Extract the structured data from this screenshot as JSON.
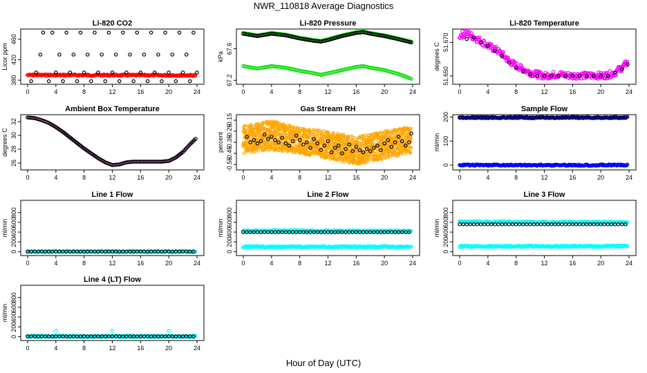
{
  "figure": {
    "title": "NWR_110818  Average Diagnostics",
    "xlabel": "Hour of Day (UTC)"
  },
  "colors": {
    "black": "#000000",
    "red": "#ff0000",
    "green": "#00dd00",
    "magenta": "#ff00ff",
    "orange": "#ffa500",
    "blue": "#0000ff",
    "cyan": "#00ffff"
  },
  "chart_data": [
    {
      "type": "scatter",
      "title": "Li-820 CO2",
      "ylabel": "Licor ppm",
      "xlim": [
        0,
        24
      ],
      "ylim": [
        372,
        480
      ],
      "xticks": [
        0,
        4,
        8,
        12,
        16,
        20,
        24
      ],
      "yticks": [
        380,
        420,
        460
      ],
      "series": [
        {
          "color": "red",
          "style": "dense",
          "y_start": 390,
          "y_end": 389.5
        },
        {
          "color": "black",
          "style": "points",
          "x": [
            0.5,
            1.2,
            1.8,
            2.2,
            3.0,
            3.5,
            4.0,
            4.5,
            5.0,
            5.5,
            6.0,
            6.5,
            7.0,
            7.5,
            8.0,
            8.5,
            9.0,
            9.5,
            10.0,
            10.5,
            11.0,
            11.5,
            12.0,
            12.5,
            13.0,
            13.5,
            14.0,
            14.5,
            15.0,
            15.5,
            16.0,
            16.5,
            17.0,
            17.5,
            18.0,
            18.5,
            19.0,
            19.5,
            20.0,
            20.5,
            21.0,
            21.5,
            22.0,
            22.5,
            23.0,
            23.5,
            24.0
          ],
          "y": [
            378,
            395,
            430,
            473,
            378,
            473,
            395,
            430,
            378,
            473,
            395,
            430,
            378,
            473,
            395,
            430,
            378,
            473,
            395,
            430,
            378,
            473,
            395,
            430,
            378,
            473,
            395,
            430,
            378,
            473,
            395,
            430,
            378,
            473,
            395,
            430,
            378,
            473,
            395,
            430,
            378,
            473,
            395,
            430,
            378,
            473,
            395
          ]
        }
      ]
    },
    {
      "type": "scatter",
      "title": "Li-820 Pressure",
      "ylabel": "kPa",
      "xlim": [
        0,
        24
      ],
      "ylim": [
        67.15,
        67.85
      ],
      "xticks": [
        0,
        4,
        8,
        12,
        16,
        20,
        24
      ],
      "yticks": [
        67.2,
        67.6
      ],
      "series": [
        {
          "color": "green",
          "style": "line-points",
          "x": [
            0,
            2,
            4,
            6,
            8,
            10,
            11,
            12,
            14,
            16,
            17,
            18,
            20,
            22,
            23.8
          ],
          "y": [
            67.8,
            67.77,
            67.8,
            67.78,
            67.74,
            67.71,
            67.7,
            67.72,
            67.77,
            67.81,
            67.82,
            67.8,
            67.77,
            67.73,
            67.69
          ]
        },
        {
          "color": "black",
          "style": "line-points",
          "x": [
            0,
            2,
            4,
            6,
            8,
            10,
            11,
            12,
            14,
            16,
            17,
            18,
            20,
            22,
            23.8
          ],
          "y": [
            67.79,
            67.76,
            67.79,
            67.77,
            67.73,
            67.7,
            67.69,
            67.71,
            67.76,
            67.8,
            67.81,
            67.79,
            67.76,
            67.72,
            67.68
          ]
        },
        {
          "color": "green",
          "style": "line-points",
          "x": [
            0,
            2,
            4,
            6,
            8,
            10,
            11,
            12,
            14,
            16,
            17,
            18,
            20,
            22,
            23.8
          ],
          "y": [
            67.38,
            67.35,
            67.38,
            67.36,
            67.32,
            67.29,
            67.27,
            67.29,
            67.33,
            67.37,
            67.38,
            67.36,
            67.33,
            67.28,
            67.22
          ]
        }
      ]
    },
    {
      "type": "scatter",
      "title": "Li-820 Temperature",
      "ylabel": "degrees C",
      "xlim": [
        0,
        24
      ],
      "ylim": [
        51.645,
        51.678
      ],
      "xticks": [
        0,
        4,
        8,
        12,
        16,
        20,
        24
      ],
      "yticks": [
        51.65,
        51.67
      ],
      "ytick_labels": [
        "51.650",
        "51.670"
      ],
      "series": [
        {
          "color": "magenta",
          "style": "noisy-curve",
          "x": [
            0,
            1,
            2,
            3,
            4,
            5,
            6,
            7,
            8,
            9,
            10,
            11,
            12,
            13,
            14,
            15,
            16,
            17,
            18,
            19,
            20,
            21,
            22,
            23,
            23.8
          ],
          "y": [
            51.674,
            51.676,
            51.673,
            51.671,
            51.668,
            51.666,
            51.663,
            51.659,
            51.656,
            51.654,
            51.652,
            51.651,
            51.65,
            51.6505,
            51.651,
            51.6505,
            51.65,
            51.6505,
            51.65,
            51.6505,
            51.65,
            51.6505,
            51.652,
            51.655,
            51.658
          ]
        },
        {
          "color": "black",
          "style": "points",
          "x": [
            1,
            2,
            3,
            4,
            5,
            6,
            7,
            8,
            9,
            10,
            11,
            12,
            13,
            14,
            15,
            16,
            17,
            18,
            19,
            20,
            21,
            22,
            23,
            23.8
          ],
          "y": [
            51.672,
            51.673,
            51.67,
            51.668,
            51.665,
            51.662,
            51.658,
            51.655,
            51.653,
            51.651,
            51.65,
            51.65,
            51.65,
            51.65,
            51.65,
            51.65,
            51.65,
            51.65,
            51.65,
            51.65,
            51.65,
            51.652,
            51.654,
            51.657
          ]
        }
      ]
    },
    {
      "type": "scatter",
      "title": "Ambient Box Temperature",
      "ylabel": "degrees C",
      "xlim": [
        0,
        24
      ],
      "ylim": [
        25,
        33
      ],
      "xticks": [
        0,
        4,
        8,
        12,
        16,
        20,
        24
      ],
      "yticks": [
        26,
        28,
        30,
        32
      ],
      "series": [
        {
          "color": "magenta",
          "style": "line-points",
          "x": [
            0,
            1,
            2,
            3,
            4,
            5,
            6,
            7,
            8,
            9,
            10,
            11,
            12,
            13,
            14,
            15,
            16,
            17,
            18,
            19,
            20,
            21,
            22,
            23,
            23.8
          ],
          "y": [
            32.6,
            32.5,
            32.2,
            31.8,
            31.2,
            30.5,
            29.7,
            28.9,
            28.1,
            27.4,
            26.7,
            26.1,
            25.7,
            25.8,
            26.1,
            26.2,
            26.2,
            26.2,
            26.2,
            26.2,
            26.3,
            26.8,
            27.6,
            28.7,
            29.5
          ]
        },
        {
          "color": "black",
          "style": "line-points",
          "x": [
            0,
            1,
            2,
            3,
            4,
            5,
            6,
            7,
            8,
            9,
            10,
            11,
            12,
            13,
            14,
            15,
            16,
            17,
            18,
            19,
            20,
            21,
            22,
            23,
            23.8
          ],
          "y": [
            32.6,
            32.5,
            32.2,
            31.8,
            31.2,
            30.5,
            29.7,
            28.9,
            28.1,
            27.4,
            26.7,
            26.1,
            25.7,
            25.8,
            26.1,
            26.2,
            26.2,
            26.2,
            26.2,
            26.2,
            26.3,
            26.8,
            27.6,
            28.7,
            29.5
          ]
        }
      ]
    },
    {
      "type": "scatter",
      "title": "Gas Stream RH",
      "ylabel": "percent",
      "xlim": [
        0,
        24
      ],
      "ylim": [
        -0.6,
        -0.1
      ],
      "xticks": [
        0,
        4,
        8,
        12,
        16,
        20,
        24
      ],
      "yticks": [
        -0.55,
        -0.45,
        -0.35,
        -0.25,
        -0.15
      ],
      "series": [
        {
          "color": "orange",
          "style": "band",
          "x": [
            0,
            4,
            8,
            12,
            16,
            20,
            23.8
          ],
          "y_low": [
            -0.45,
            -0.42,
            -0.45,
            -0.5,
            -0.55,
            -0.5,
            -0.45
          ],
          "y_high": [
            -0.2,
            -0.15,
            -0.22,
            -0.25,
            -0.3,
            -0.25,
            -0.2
          ]
        },
        {
          "color": "black",
          "style": "points",
          "x": [
            0.5,
            1,
            1.5,
            2,
            2.5,
            3,
            3.5,
            4,
            4.5,
            5,
            5.5,
            6,
            6.5,
            7,
            7.5,
            8,
            8.5,
            9,
            9.5,
            10,
            10.5,
            11,
            11.5,
            12,
            12.5,
            13,
            13.5,
            14,
            14.5,
            15,
            15.5,
            16,
            16.5,
            17,
            17.5,
            18,
            18.5,
            19,
            19.5,
            20,
            20.5,
            21,
            21.5,
            22,
            22.5,
            23,
            23.5,
            23.8
          ],
          "y": [
            -0.3,
            -0.35,
            -0.33,
            -0.36,
            -0.34,
            -0.28,
            -0.32,
            -0.3,
            -0.33,
            -0.35,
            -0.31,
            -0.36,
            -0.38,
            -0.34,
            -0.29,
            -0.33,
            -0.37,
            -0.35,
            -0.4,
            -0.32,
            -0.36,
            -0.42,
            -0.38,
            -0.34,
            -0.44,
            -0.4,
            -0.38,
            -0.45,
            -0.41,
            -0.37,
            -0.43,
            -0.39,
            -0.42,
            -0.44,
            -0.41,
            -0.43,
            -0.4,
            -0.38,
            -0.42,
            -0.36,
            -0.33,
            -0.39,
            -0.35,
            -0.3,
            -0.34,
            -0.38,
            -0.35,
            -0.27
          ]
        }
      ]
    },
    {
      "type": "scatter",
      "title": "Sample Flow",
      "ylabel": "ml/min",
      "xlim": [
        0,
        24
      ],
      "ylim": [
        -20,
        210
      ],
      "xticks": [
        0,
        4,
        8,
        12,
        16,
        20,
        24
      ],
      "yticks": [
        0,
        100,
        200
      ],
      "series": [
        {
          "color": "blue",
          "style": "dense",
          "y_start": 198,
          "y_end": 198
        },
        {
          "color": "black",
          "style": "points-row",
          "y": 197
        },
        {
          "color": "blue",
          "style": "dense",
          "y_start": 0,
          "y_end": 0
        }
      ]
    },
    {
      "type": "scatter",
      "title": "Line 1 Flow",
      "ylabel": "ml/min",
      "xlim": [
        0,
        24
      ],
      "ylim": [
        -80,
        1050
      ],
      "xticks": [
        0,
        4,
        8,
        12,
        16,
        20,
        24
      ],
      "yticks": [
        0,
        200,
        400,
        600,
        800
      ],
      "series": [
        {
          "color": "cyan",
          "style": "dense",
          "y_start": 2,
          "y_end": 2
        },
        {
          "color": "black",
          "style": "points-row",
          "y": 2
        }
      ]
    },
    {
      "type": "scatter",
      "title": "Line 2 Flow",
      "ylabel": "ml/min",
      "xlim": [
        0,
        24
      ],
      "ylim": [
        -80,
        1050
      ],
      "xticks": [
        0,
        4,
        8,
        12,
        16,
        20,
        24
      ],
      "yticks": [
        0,
        200,
        400,
        600,
        800
      ],
      "series": [
        {
          "color": "cyan",
          "style": "dense",
          "y_start": 430,
          "y_end": 420
        },
        {
          "color": "black",
          "style": "points-row",
          "y": 400
        },
        {
          "color": "cyan",
          "style": "dense",
          "y_start": 100,
          "y_end": 100
        }
      ]
    },
    {
      "type": "scatter",
      "title": "Line 3 Flow",
      "ylabel": "ml/min",
      "xlim": [
        0,
        24
      ],
      "ylim": [
        -80,
        1050
      ],
      "xticks": [
        0,
        4,
        8,
        12,
        16,
        20,
        24
      ],
      "yticks": [
        0,
        200,
        400,
        600,
        800
      ],
      "series": [
        {
          "color": "cyan",
          "style": "dense",
          "y_start": 610,
          "y_end": 600
        },
        {
          "color": "black",
          "style": "points-row",
          "y": 560
        },
        {
          "color": "cyan",
          "style": "dense",
          "y_start": 110,
          "y_end": 110
        }
      ]
    },
    {
      "type": "scatter",
      "title": "Line 4 (LT) Flow",
      "ylabel": "ml/min",
      "xlim": [
        0,
        24
      ],
      "ylim": [
        -80,
        1050
      ],
      "xticks": [
        0,
        4,
        8,
        12,
        16,
        20,
        24
      ],
      "yticks": [
        0,
        200,
        400,
        600,
        800
      ],
      "series": [
        {
          "color": "cyan",
          "style": "dense",
          "y_start": 5,
          "y_end": 5
        },
        {
          "color": "cyan",
          "style": "points",
          "x": [
            4,
            12,
            20
          ],
          "y": [
            120,
            120,
            120
          ]
        },
        {
          "color": "black",
          "style": "points-row",
          "y": 5
        }
      ]
    }
  ]
}
